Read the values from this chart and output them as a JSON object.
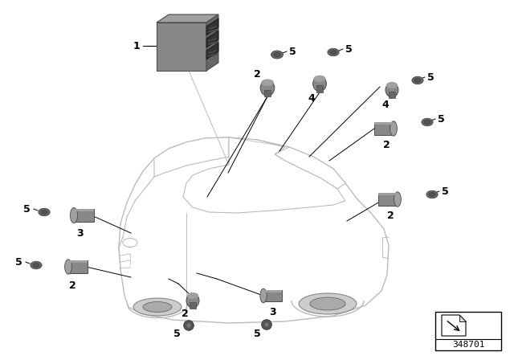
{
  "background_color": "#ffffff",
  "part_number": "348701",
  "car_body_color": "#ffffff",
  "car_outline_color": "#bbbbbb",
  "part_gray_light": "#a0a0a0",
  "part_gray_mid": "#888888",
  "part_gray_dark": "#666666",
  "part_gray_darker": "#4a4a4a",
  "ecu_top": "#999999",
  "ecu_front": "#7a7a7a",
  "ecu_side": "#555555",
  "label_fs": 9,
  "bold_fs": 9
}
